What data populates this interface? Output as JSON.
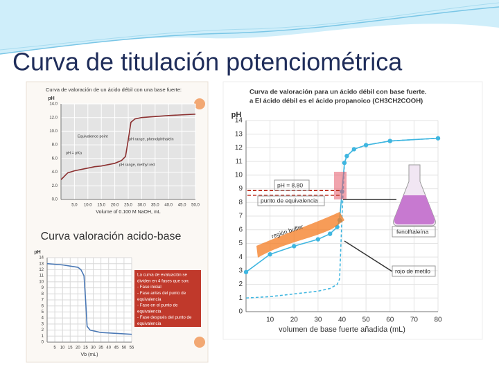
{
  "slide_title": "Curva de titulación potenciométrica",
  "chart_data": [
    {
      "type": "line",
      "title": "Curva de valoración de un ácido débil con una base fuerte:",
      "xlabel": "Volume of 0.100 M NaOH, mL",
      "ylabel": "pH",
      "x": [
        0,
        2.5,
        5,
        10,
        12.5,
        15,
        20,
        22.5,
        24,
        25,
        26,
        27.5,
        30,
        40,
        50
      ],
      "series": [
        {
          "color": "#8b2f2f",
          "values": [
            2.9,
            3.9,
            4.2,
            4.6,
            4.8,
            4.9,
            5.3,
            5.7,
            6.3,
            8.7,
            11.3,
            11.8,
            12.0,
            12.3,
            12.5
          ]
        }
      ],
      "xlim": [
        0,
        50
      ],
      "xticks": [
        {
          "value": 5,
          "label": "5.0"
        },
        {
          "value": 10,
          "label": "10.0"
        },
        {
          "value": 15,
          "label": "15.0"
        },
        {
          "value": 20,
          "label": "20.0"
        },
        {
          "value": 25,
          "label": "25.0"
        },
        {
          "value": 30,
          "label": "30.0"
        },
        {
          "value": 35,
          "label": "35.0"
        },
        {
          "value": 40,
          "label": "40.0"
        },
        {
          "value": 45,
          "label": "45.0"
        },
        {
          "value": 50,
          "label": "50.0"
        }
      ],
      "ylim": [
        0,
        14
      ],
      "yticks": [
        {
          "value": 0,
          "label": "0.0"
        },
        {
          "value": 2,
          "label": "2.0"
        },
        {
          "value": 4,
          "label": "4.0"
        },
        {
          "value": 6,
          "label": "6.0"
        },
        {
          "value": 8,
          "label": "8.0"
        },
        {
          "value": 10,
          "label": "10.0"
        },
        {
          "value": 12,
          "label": "12.0"
        },
        {
          "value": 14,
          "label": "14.0"
        }
      ],
      "grid": true,
      "annotations": [
        "Equivalence point",
        "pH range, phenolphthalein",
        "pH = pKa",
        "pH range, methyl red"
      ]
    },
    {
      "type": "line",
      "title": "Curva valoración acido-base",
      "xlabel": "Vb (mL)",
      "ylabel": "pH",
      "x": [
        0,
        10,
        20,
        22,
        24,
        25,
        26,
        28,
        35,
        55
      ],
      "series": [
        {
          "color": "#4a78b5",
          "values": [
            13,
            12.8,
            12.4,
            12.0,
            11.0,
            7.0,
            2.6,
            2.0,
            1.6,
            1.3
          ]
        }
      ],
      "xlim": [
        0,
        55
      ],
      "xticks": [
        5,
        10,
        15,
        20,
        25,
        30,
        35,
        40,
        45,
        50,
        55
      ],
      "ylim": [
        0,
        14
      ],
      "yticks": [
        0,
        1,
        2,
        3,
        4,
        5,
        6,
        7,
        8,
        9,
        10,
        11,
        12,
        13,
        14
      ],
      "grid": true
    },
    {
      "type": "line",
      "title": "Curva de valoración para un ácido débil con base fuerte.",
      "subtitle": "a El ácido débil es el ácido propanoico (CH3CH2COOH)",
      "xlabel": "volumen de base fuerte añadida (mL)",
      "ylabel": "pH",
      "x": [
        0,
        10,
        20,
        30,
        35,
        38,
        39,
        40,
        41,
        42,
        45,
        50,
        60,
        80
      ],
      "series": [
        {
          "color": "#3fb6e0",
          "markers": true,
          "values": [
            2.9,
            4.2,
            4.8,
            5.3,
            5.7,
            6.2,
            6.7,
            8.8,
            10.9,
            11.4,
            11.9,
            12.2,
            12.5,
            12.7
          ]
        },
        {
          "color": "#3fb6e0",
          "dash": true,
          "values": [
            1.0,
            1.1,
            1.3,
            1.5,
            1.7,
            2.0,
            2.4,
            7.0,
            10.9,
            11.4,
            11.9,
            12.2,
            12.5,
            12.7
          ]
        }
      ],
      "xlim": [
        0,
        80
      ],
      "xticks": [
        10,
        20,
        30,
        40,
        50,
        60,
        70,
        80
      ],
      "ylim": [
        0,
        14
      ],
      "yticks": [
        0,
        1,
        2,
        3,
        4,
        5,
        6,
        7,
        8,
        9,
        10,
        11,
        12,
        13,
        14
      ],
      "grid": true,
      "annotations": [
        "pH = 8.80",
        "punto de equivalencia",
        "región buffer",
        "fenolftaleína",
        "rojo de metilo"
      ]
    }
  ],
  "note_box": {
    "lines": [
      "La curva de evaluación se",
      "dividen en 4 fases que son:",
      "- Fase inicial",
      "- Fase antes del punto de",
      "equivalencia",
      "- Fase en el punto de",
      "equivalencia",
      "- Fase después del punto de",
      "equivalencia"
    ]
  }
}
